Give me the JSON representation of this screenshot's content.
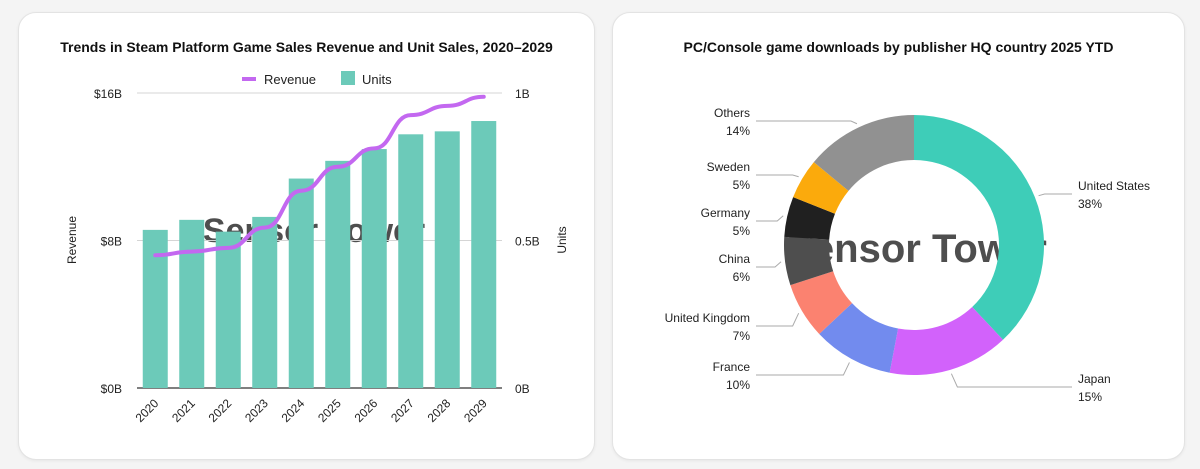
{
  "chart_data": [
    {
      "type": "bar",
      "title": "Trends in Steam Platform Game Sales Revenue and Unit Sales, 2020–2029",
      "categories": [
        "2020",
        "2021",
        "2022",
        "2023",
        "2024",
        "2025",
        "2026",
        "2027",
        "2028",
        "2029"
      ],
      "series": [
        {
          "name": "Units",
          "type": "bar",
          "axis": "right",
          "color": "#6ccab9",
          "values": [
            0.536,
            0.57,
            0.53,
            0.58,
            0.71,
            0.77,
            0.81,
            0.86,
            0.87,
            0.905
          ]
        },
        {
          "name": "Revenue",
          "type": "line",
          "axis": "left",
          "color": "#c368f0",
          "values": [
            7.2,
            7.4,
            7.6,
            8.7,
            10.7,
            12.0,
            13.0,
            14.8,
            15.3,
            15.8
          ]
        }
      ],
      "ylabel": "Revenue",
      "y2label": "Units",
      "ylim": [
        0,
        16
      ],
      "y2lim": [
        0,
        1
      ],
      "yticks": [
        "$0B",
        "$8B",
        "$16B"
      ],
      "y2ticks": [
        "0B",
        "0.5B",
        "1B"
      ],
      "legend": "top",
      "watermark": "Sensor Tower"
    },
    {
      "type": "pie",
      "title": "PC/Console game downloads by publisher HQ country 2025 YTD",
      "labels": [
        "United States",
        "Japan",
        "France",
        "United Kingdom",
        "China",
        "Germany",
        "Sweden",
        "Others"
      ],
      "values": [
        38,
        15,
        10,
        7,
        6,
        5,
        5,
        14
      ],
      "value_labels": [
        "38%",
        "15%",
        "10%",
        "7%",
        "6%",
        "5%",
        "5%",
        "14%"
      ],
      "colors": [
        "#3ecdb8",
        "#d262fb",
        "#728bee",
        "#fb8270",
        "#4e4e4e",
        "#202020",
        "#fbaa0c",
        "#919191"
      ],
      "watermark": "Sensor Tower"
    }
  ]
}
